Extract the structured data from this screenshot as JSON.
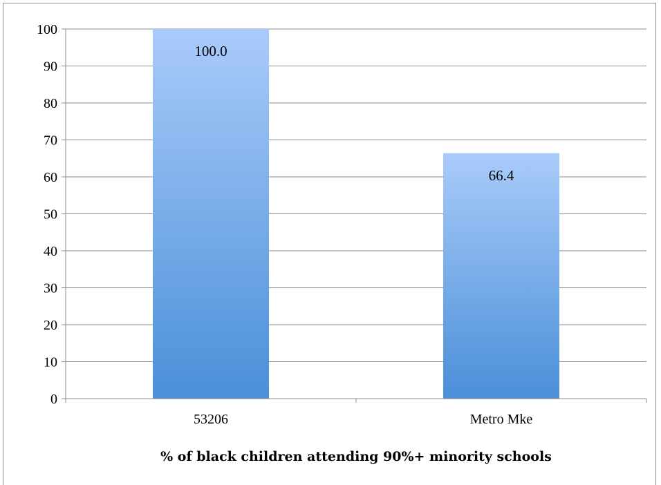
{
  "chart_data": {
    "type": "bar",
    "categories": [
      "53206",
      "Metro Mke"
    ],
    "series": [
      {
        "values": [
          100.0,
          66.4
        ]
      }
    ],
    "data_labels": [
      "100.0",
      "66.4"
    ],
    "title": "",
    "xlabel": "% of black children attending 90%+ minority schools",
    "ylabel": "",
    "ylim": [
      0,
      100
    ],
    "yticks": [
      0,
      10,
      20,
      30,
      40,
      50,
      60,
      70,
      80,
      90,
      100
    ],
    "grid": true,
    "legend": "none",
    "colors": {
      "bar_top": "#a9cbfa",
      "bar_bottom": "#4a8fd8",
      "grid": "#8c8c8c",
      "axis": "#8c8c8c"
    }
  }
}
